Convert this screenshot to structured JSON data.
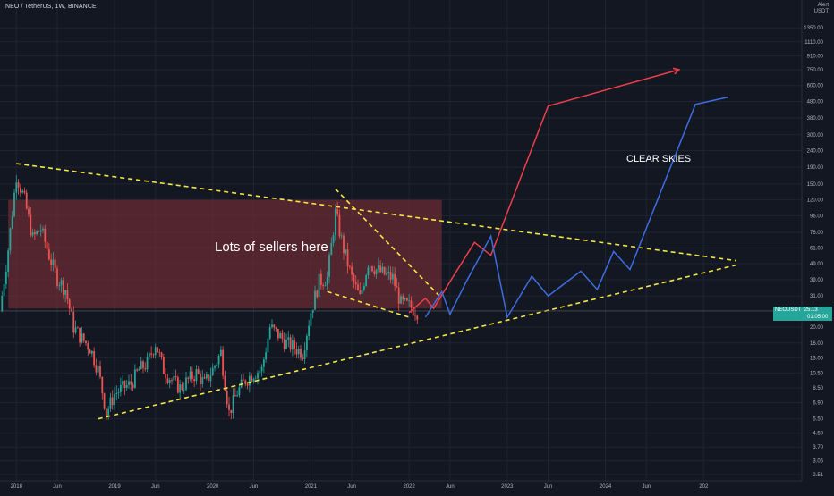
{
  "header": {
    "title": "NEO / TetherUS, 1W, BINANCE",
    "currency_line1": "Alert",
    "currency_line2": "USDT"
  },
  "price_tag": {
    "symbol": "NEOUSDT",
    "price": "25.13",
    "countdown": "01:05:00"
  },
  "annotations": {
    "sellers": "Lots of sellers here",
    "skies": "CLEAR SKIES"
  },
  "colors": {
    "background": "#131722",
    "up": "#26a69a",
    "down": "#ef5350",
    "trendline": "#f5e642",
    "zone": "#7a2e36",
    "projection_red": "#ef3e4a",
    "projection_blue": "#3d6de0"
  },
  "chart_data": {
    "type": "candlestick",
    "scale": "log",
    "ylim": [
      2.3,
      2000
    ],
    "xlim": [
      "2017-11",
      "2026-01"
    ],
    "y_ticks": [
      "1350.00",
      "1110.00",
      "910.00",
      "750.00",
      "600.00",
      "480.00",
      "380.00",
      "300.00",
      "240.00",
      "190.00",
      "150.00",
      "120.00",
      "96.00",
      "76.00",
      "61.00",
      "49.00",
      "39.00",
      "31.00",
      "20.00",
      "16.00",
      "13.00",
      "10.50",
      "8.50",
      "6.90",
      "5.50",
      "4.50",
      "3.70",
      "3.05",
      "2.51"
    ],
    "y_tick_values": [
      1350,
      1110,
      910,
      750,
      600,
      480,
      380,
      300,
      240,
      190,
      150,
      120,
      96,
      76,
      61,
      49,
      39,
      31,
      20,
      16,
      13,
      10.5,
      8.5,
      6.9,
      5.5,
      4.5,
      3.7,
      3.05,
      2.51
    ],
    "x_ticks": [
      "2018",
      "Jun",
      "2019",
      "Jun",
      "2020",
      "Jun",
      "2021",
      "Jun",
      "2022",
      "Jun",
      "2023",
      "Jun",
      "2024",
      "Jun",
      "202"
    ],
    "x_tick_dates": [
      "2018-01",
      "2018-06",
      "2019-01",
      "2019-06",
      "2020-01",
      "2020-06",
      "2021-01",
      "2021-06",
      "2022-01",
      "2022-06",
      "2023-01",
      "2023-06",
      "2024-01",
      "2024-06",
      "2025-01"
    ],
    "current_price": 25.13,
    "price_path": [
      [
        "2017-11",
        25
      ],
      [
        "2017-12",
        60
      ],
      [
        "2018-01",
        170
      ],
      [
        "2018-02",
        120
      ],
      [
        "2018-03",
        70
      ],
      [
        "2018-04",
        80
      ],
      [
        "2018-05",
        55
      ],
      [
        "2018-06",
        40
      ],
      [
        "2018-07",
        34
      ],
      [
        "2018-08",
        20
      ],
      [
        "2018-09",
        17
      ],
      [
        "2018-10",
        15
      ],
      [
        "2018-11",
        11
      ],
      [
        "2018-12",
        6.0
      ],
      [
        "2019-01",
        7.8
      ],
      [
        "2019-02",
        8.5
      ],
      [
        "2019-03",
        9.0
      ],
      [
        "2019-04",
        11
      ],
      [
        "2019-05",
        12
      ],
      [
        "2019-06",
        16
      ],
      [
        "2019-07",
        11
      ],
      [
        "2019-08",
        9.5
      ],
      [
        "2019-09",
        8.5
      ],
      [
        "2019-10",
        9.5
      ],
      [
        "2019-11",
        10.5
      ],
      [
        "2019-12",
        9.0
      ],
      [
        "2020-01",
        11
      ],
      [
        "2020-02",
        14
      ],
      [
        "2020-03",
        6.0
      ],
      [
        "2020-04",
        8.0
      ],
      [
        "2020-05",
        9.5
      ],
      [
        "2020-06",
        10.5
      ],
      [
        "2020-07",
        11
      ],
      [
        "2020-08",
        20
      ],
      [
        "2020-09",
        18
      ],
      [
        "2020-10",
        16
      ],
      [
        "2020-11",
        15
      ],
      [
        "2020-12",
        14
      ],
      [
        "2021-01",
        25
      ],
      [
        "2021-02",
        38
      ],
      [
        "2021-03",
        40
      ],
      [
        "2021-04",
        100
      ],
      [
        "2021-05",
        60
      ],
      [
        "2021-06",
        40
      ],
      [
        "2021-07",
        30
      ],
      [
        "2021-08",
        50
      ],
      [
        "2021-09",
        45
      ],
      [
        "2021-10",
        42
      ],
      [
        "2021-11",
        40
      ],
      [
        "2021-12",
        28
      ],
      [
        "2022-01",
        27
      ],
      [
        "2022-02",
        25
      ]
    ],
    "supply_zone": {
      "x": [
        "2017-12",
        "2022-05"
      ],
      "y": [
        26,
        120
      ]
    },
    "trendlines": [
      {
        "name": "upper",
        "points": [
          [
            "2018-01",
            200
          ],
          [
            "2025-05",
            51
          ]
        ]
      },
      {
        "name": "lower",
        "points": [
          [
            "2018-11",
            5.5
          ],
          [
            "2025-05",
            48
          ]
        ]
      },
      {
        "name": "wedge-top",
        "points": [
          [
            "2021-04",
            140
          ],
          [
            "2022-05",
            30
          ]
        ]
      },
      {
        "name": "wedge-bottom",
        "points": [
          [
            "2021-03",
            33
          ],
          [
            "2022-01",
            23
          ]
        ]
      }
    ],
    "projections": [
      {
        "name": "red",
        "points": [
          [
            "2022-01",
            24.5
          ],
          [
            "2022-03",
            30
          ],
          [
            "2022-04",
            26
          ],
          [
            "2022-06",
            38
          ],
          [
            "2022-09",
            66
          ],
          [
            "2022-11",
            55
          ],
          [
            "2023-06",
            450
          ],
          [
            "2024-10",
            750
          ]
        ]
      },
      {
        "name": "blue",
        "points": [
          [
            "2022-03",
            23
          ],
          [
            "2022-05",
            33
          ],
          [
            "2022-06",
            24
          ],
          [
            "2022-08",
            38
          ],
          [
            "2022-11",
            72
          ],
          [
            "2023-01",
            23
          ],
          [
            "2023-04",
            41
          ],
          [
            "2023-06",
            31
          ],
          [
            "2023-10",
            44
          ],
          [
            "2023-12",
            34
          ],
          [
            "2024-02",
            58
          ],
          [
            "2024-04",
            45
          ],
          [
            "2024-12",
            460
          ],
          [
            "2025-04",
            510
          ]
        ]
      }
    ]
  }
}
